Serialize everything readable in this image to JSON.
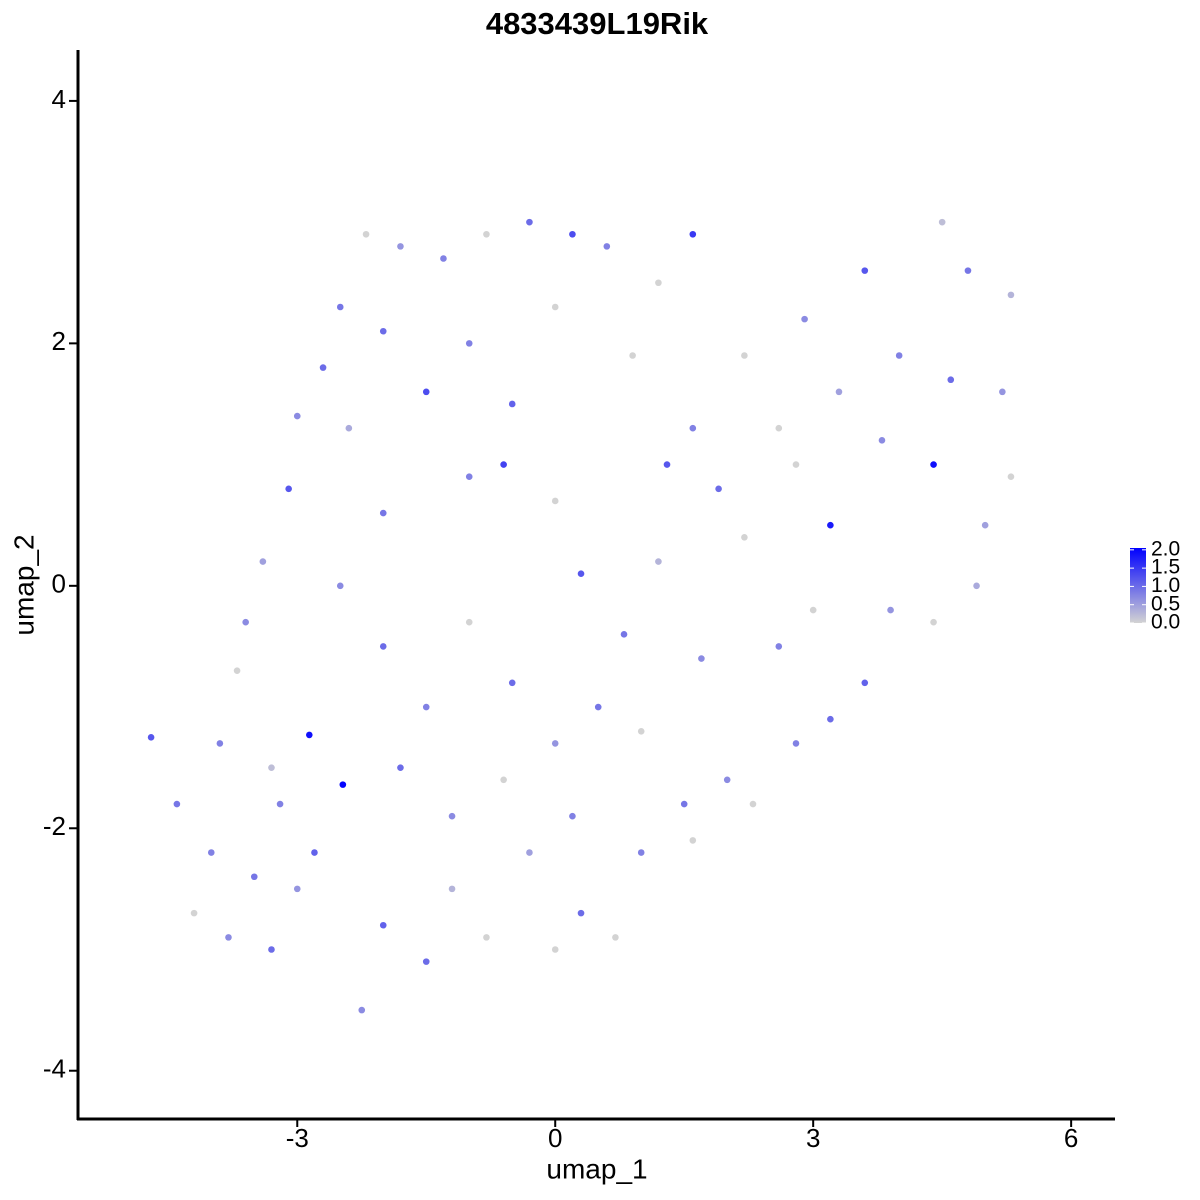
{
  "chart_data": {
    "type": "scatter",
    "title": "4833439L19Rik",
    "x_label": "umap_1",
    "y_label": "umap_2",
    "xlim": [
      -5.55,
      6.51
    ],
    "ylim": [
      -4.39,
      4.42
    ],
    "xticks": [
      -3,
      0,
      3,
      6
    ],
    "yticks": [
      -4,
      -2,
      0,
      2,
      4
    ],
    "grid": false,
    "low_color": "#d3d3d3",
    "high_color": "#0000ff",
    "clim": [
      0,
      2.05
    ],
    "cticks": [
      {
        "value": 0,
        "label": "0.0"
      },
      {
        "value": 0.5,
        "label": "0.5"
      },
      {
        "value": 1,
        "label": "1.0"
      },
      {
        "value": 1.5,
        "label": "1.5"
      },
      {
        "value": 2,
        "label": "2.0"
      }
    ],
    "x": [
      -4.7,
      -4.4,
      -4.0,
      -3.8,
      -3.5,
      -3.3,
      -3.0,
      -2.47,
      -2.86,
      -2.25,
      -2.0,
      -1.5,
      -1.2,
      -0.8,
      -0.3,
      0.0,
      0.3,
      0.7,
      1.0,
      1.5,
      1.6,
      2.0,
      2.3,
      2.8,
      3.2,
      3.6,
      3.9,
      4.4,
      4.9,
      5.0,
      5.3,
      5.2,
      5.3,
      4.8,
      4.5,
      4.4,
      4.0,
      3.6,
      3.3,
      3.2,
      2.9,
      2.6,
      2.2,
      1.9,
      1.6,
      1.6,
      1.2,
      0.9,
      0.6,
      0.2,
      -0.3,
      -0.8,
      -1.3,
      -1.8,
      -2.2,
      -2.5,
      -2.7,
      -3.0,
      -3.1,
      -3.4,
      -3.6,
      -3.7,
      -3.9,
      -2.4,
      -2.0,
      -1.5,
      -1.0,
      -0.5,
      0.0,
      0.3,
      0.8,
      1.2,
      1.7,
      2.2,
      2.6,
      3.0,
      -2.5,
      -2.0,
      -1.5,
      -1.0,
      -0.5,
      0.0,
      0.5,
      1.0,
      -3.2,
      -2.8,
      -1.8,
      -1.2,
      -0.6,
      0.2,
      -3.3,
      -4.2,
      -2.0,
      -1.0,
      0.0,
      -0.6,
      1.3,
      2.8,
      3.8,
      4.6
    ],
    "y": [
      -1.25,
      -1.8,
      -2.2,
      -2.9,
      -2.4,
      -3.0,
      -2.5,
      -1.64,
      -1.23,
      -3.5,
      -2.8,
      -3.1,
      -2.5,
      -2.9,
      -2.2,
      -3.0,
      -2.7,
      -2.9,
      -2.2,
      -1.8,
      -2.1,
      -1.6,
      -1.8,
      -1.3,
      -1.1,
      -0.8,
      -0.2,
      -0.3,
      0.0,
      0.5,
      0.9,
      1.6,
      2.4,
      2.6,
      3.0,
      1.0,
      1.9,
      2.6,
      1.6,
      0.5,
      2.2,
      1.3,
      1.9,
      0.8,
      1.3,
      2.9,
      2.5,
      1.9,
      2.8,
      2.9,
      3.0,
      2.9,
      2.7,
      2.8,
      2.9,
      2.3,
      1.8,
      1.4,
      0.8,
      0.2,
      -0.3,
      -0.7,
      -1.3,
      1.3,
      0.6,
      1.6,
      0.9,
      1.5,
      0.7,
      0.1,
      -0.4,
      0.2,
      -0.6,
      0.4,
      -0.5,
      -0.2,
      0.0,
      -0.5,
      -1.0,
      -0.3,
      -0.8,
      -1.3,
      -1.0,
      -1.2,
      -1.8,
      -2.2,
      -1.5,
      -1.9,
      -1.6,
      -1.9,
      -1.5,
      -2.7,
      2.1,
      2.0,
      2.3,
      1.0,
      1.0,
      1.0,
      1.2,
      1.7
    ],
    "values": [
      1.2,
      0.9,
      0.8,
      0.7,
      0.9,
      1.0,
      0.6,
      2.0,
      1.9,
      0.7,
      1.1,
      1.0,
      0.3,
      0.0,
      0.5,
      0.0,
      1.0,
      0.0,
      0.8,
      0.9,
      0.0,
      0.7,
      0.0,
      0.8,
      1.0,
      1.1,
      0.6,
      0.0,
      0.4,
      0.5,
      0.0,
      0.6,
      0.3,
      0.9,
      0.2,
      1.9,
      0.8,
      1.2,
      0.5,
      1.8,
      0.7,
      0.0,
      0.0,
      1.0,
      0.8,
      1.5,
      0.0,
      0.0,
      0.8,
      1.3,
      1.0,
      0.0,
      0.8,
      0.6,
      0.0,
      0.9,
      1.0,
      0.7,
      1.2,
      0.5,
      0.7,
      0.0,
      0.8,
      0.4,
      0.9,
      1.3,
      0.8,
      1.1,
      0.0,
      1.2,
      0.9,
      0.3,
      0.7,
      0.0,
      0.8,
      0.0,
      0.7,
      1.0,
      0.8,
      0.0,
      1.0,
      0.6,
      0.9,
      0.0,
      0.8,
      1.1,
      1.0,
      0.7,
      0.0,
      0.8,
      0.2,
      0.0,
      1.0,
      0.8,
      0.0,
      1.4,
      1.2,
      0.0,
      0.7,
      1.0
    ]
  }
}
